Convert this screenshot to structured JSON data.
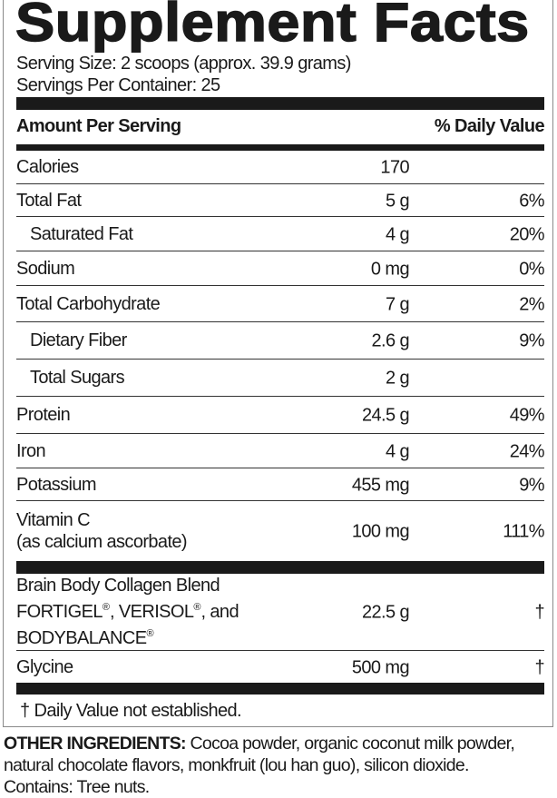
{
  "title": "Supplement Facts",
  "serving_size": "Serving Size: 2 scoops (approx. 39.9 grams)",
  "servings_per_container": "Servings Per Container: 25",
  "header": {
    "amount": "Amount Per Serving",
    "dv": "% Daily Value"
  },
  "rows": [
    {
      "name": "Calories",
      "amount": "170",
      "dv": "",
      "indent": false
    },
    {
      "name": "Total Fat",
      "amount": "5 g",
      "dv": "6%",
      "indent": false
    },
    {
      "name": "Saturated Fat",
      "amount": "4 g",
      "dv": "20%",
      "indent": true
    },
    {
      "name": "Sodium",
      "amount": "0 mg",
      "dv": "0%",
      "indent": false
    },
    {
      "name": "Total Carbohydrate",
      "amount": "7 g",
      "dv": "2%",
      "indent": false
    },
    {
      "name": "Dietary Fiber",
      "amount": "2.6 g",
      "dv": "9%",
      "indent": true
    },
    {
      "name": "Total Sugars",
      "amount": "2 g",
      "dv": "",
      "indent": true
    },
    {
      "name": "Protein",
      "amount": "24.5 g",
      "dv": "49%",
      "indent": false
    },
    {
      "name": "Iron",
      "amount": "4 g",
      "dv": "24%",
      "indent": false
    },
    {
      "name": "Potassium",
      "amount": "455 mg",
      "dv": "9%",
      "indent": false
    },
    {
      "name": "Vitamin C",
      "subname": "(as calcium ascorbate)",
      "amount": "100 mg",
      "dv": "111%",
      "indent": false
    }
  ],
  "blend": {
    "line1": "Brain Body Collagen Blend",
    "line2_a": "FORTIGEL",
    "line2_b": ", VERISOL",
    "line2_c": ", and",
    "line3": "BODYBALANCE",
    "reg": "®",
    "amount": "22.5 g",
    "dv": "†"
  },
  "glycine": {
    "name": "Glycine",
    "amount": "500 mg",
    "dv": "†"
  },
  "footnote": "† Daily Value not established.",
  "other_ingredients": {
    "label": "OTHER INGREDIENTS:",
    "text": " Cocoa powder, organic coconut milk powder, natural chocolate flavors, monkfruit (lou han guo), silicon dioxide.",
    "contains": "Contains: Tree nuts."
  }
}
